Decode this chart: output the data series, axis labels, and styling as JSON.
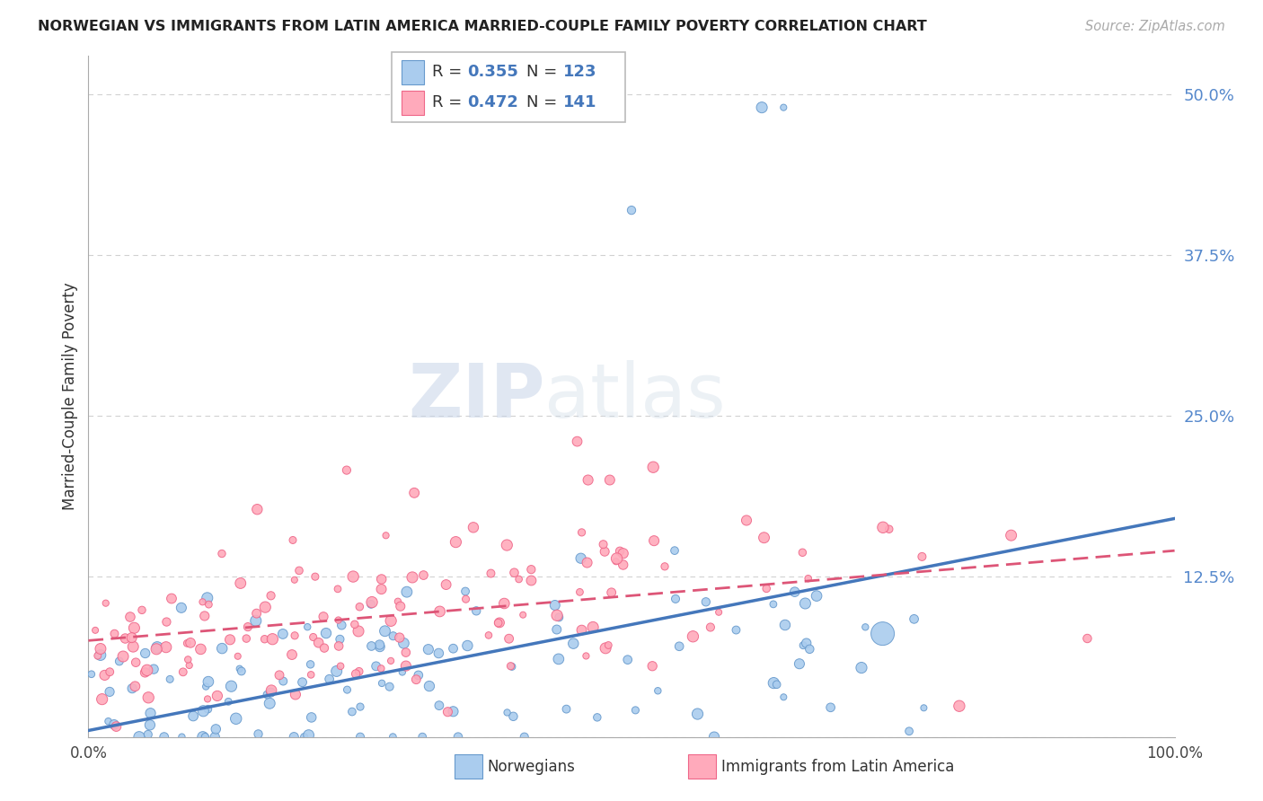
{
  "title": "NORWEGIAN VS IMMIGRANTS FROM LATIN AMERICA MARRIED-COUPLE FAMILY POVERTY CORRELATION CHART",
  "source": "Source: ZipAtlas.com",
  "ylabel": "Married-Couple Family Poverty",
  "ylim": [
    0,
    53
  ],
  "xlim": [
    0,
    100
  ],
  "background_color": "#ffffff",
  "grid_color": "#cccccc",
  "ytick_vals": [
    0,
    12.5,
    25.0,
    37.5,
    50.0
  ],
  "ytick_labels": [
    "",
    "12.5%",
    "25.0%",
    "37.5%",
    "50.0%"
  ],
  "xtick_vals": [
    0,
    100
  ],
  "xtick_labels": [
    "0.0%",
    "100.0%"
  ],
  "watermark_zip": "ZIP",
  "watermark_atlas": "atlas",
  "series": [
    {
      "name": "Norwegians",
      "R": 0.355,
      "N": 123,
      "color": "#aaccee",
      "edge_color": "#6699cc",
      "line_color": "#4477bb",
      "line_style": "solid",
      "reg_start": 0.5,
      "reg_end": 17.0
    },
    {
      "name": "Immigrants from Latin America",
      "R": 0.472,
      "N": 141,
      "color": "#ffaabb",
      "edge_color": "#ee6688",
      "line_color": "#dd5577",
      "line_style": "dashed",
      "reg_start": 7.5,
      "reg_end": 14.5
    }
  ],
  "legend_box_colors": [
    "#aaccee",
    "#ffaabb"
  ],
  "legend_box_edge": [
    "#6699cc",
    "#ee6688"
  ],
  "marker_size": 50
}
